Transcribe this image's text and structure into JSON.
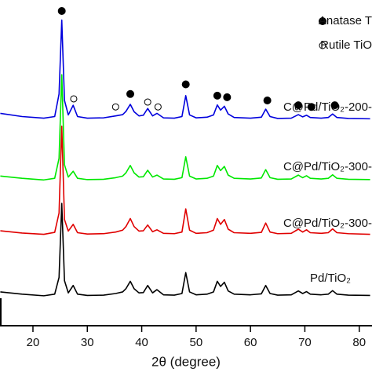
{
  "chart_data": {
    "type": "line",
    "xlabel": "2θ (degree)",
    "xlim": [
      14,
      82
    ],
    "xticks": [
      20,
      30,
      40,
      50,
      60,
      70,
      80
    ],
    "ylim": [
      0,
      100
    ],
    "x": [
      14,
      18,
      22,
      24,
      24.8,
      25.3,
      25.8,
      26.5,
      27.4,
      28.2,
      30,
      33,
      35.2,
      36.5,
      37.1,
      37.9,
      38.6,
      39.5,
      40.3,
      41.1,
      42,
      42.8,
      44,
      46,
      47.4,
      48.1,
      48.8,
      50,
      52,
      53.2,
      53.9,
      54.5,
      55.2,
      55.9,
      57,
      60,
      62,
      62.8,
      63.6,
      65,
      67.5,
      68.8,
      69.6,
      70.3,
      71,
      73,
      74.3,
      75.1,
      75.9,
      78,
      82
    ],
    "series": [
      {
        "name": "Pd/TiO₂",
        "color": "#000000",
        "values": [
          10.5,
          9.8,
          9.3,
          9.8,
          15,
          38,
          14,
          10.2,
          12.5,
          9.8,
          9.4,
          9.5,
          10,
          10.5,
          11.5,
          13.8,
          11.5,
          10.2,
          10.3,
          12.5,
          10.2,
          11.2,
          9.6,
          9.5,
          10,
          16.5,
          10.5,
          9.6,
          9.8,
          10.5,
          13.8,
          12.2,
          13.5,
          10.8,
          9.8,
          9.6,
          9.9,
          12.5,
          10,
          9.5,
          9.6,
          10.8,
          10,
          10.6,
          9.8,
          9.6,
          9.8,
          10.9,
          9.8,
          9.5,
          9.4
        ]
      },
      {
        "name": "C@Pd/TiO₂-300-",
        "color": "#e00000",
        "values": [
          29.5,
          28.8,
          28.4,
          29,
          35,
          62,
          33,
          29.4,
          31.5,
          28.9,
          28.5,
          28.6,
          29.1,
          29.7,
          30.8,
          33.3,
          30.8,
          29.4,
          29.5,
          31.3,
          29.2,
          29.8,
          28.7,
          28.6,
          29.1,
          36.3,
          29.7,
          28.7,
          28.9,
          29.7,
          33.3,
          31.5,
          33,
          30,
          28.9,
          28.7,
          29,
          31.9,
          29.1,
          28.6,
          28.7,
          30,
          29.1,
          29.8,
          28.9,
          28.7,
          28.9,
          30.1,
          28.9,
          28.6,
          28.4
        ]
      },
      {
        "name": "C@Pd/TiO₂-300-",
        "color": "#00e800",
        "values": [
          46.5,
          45.8,
          45.3,
          45.8,
          52,
          78,
          50,
          46.2,
          48,
          45.8,
          45.4,
          45.5,
          46,
          46.5,
          47.5,
          49.8,
          47.5,
          46.2,
          46.3,
          48.3,
          46.2,
          46.8,
          45.6,
          45.5,
          46,
          52.5,
          46.5,
          45.6,
          45.8,
          46.5,
          49.8,
          48.2,
          49.5,
          46.8,
          45.8,
          45.6,
          45.9,
          48.5,
          46,
          45.5,
          45.6,
          46.8,
          46,
          46.6,
          45.8,
          45.6,
          45.8,
          46.9,
          45.8,
          45.5,
          45.4
        ]
      },
      {
        "name": "C@Pd/TiO₂-200-",
        "color": "#0000dd",
        "values": [
          66,
          65,
          64.5,
          65,
          72,
          95,
          70,
          65.5,
          68.5,
          65,
          64.5,
          64.6,
          65.2,
          65.6,
          66.6,
          68.8,
          66.5,
          65.2,
          65.4,
          67.5,
          65.2,
          66,
          64.6,
          64.5,
          65,
          71.5,
          65.5,
          64.6,
          64.8,
          65.5,
          68.6,
          67,
          68.2,
          65.8,
          64.7,
          64.5,
          64.8,
          67.3,
          65,
          64.4,
          64.5,
          65.6,
          64.9,
          65.4,
          64.7,
          64.5,
          64.7,
          65.8,
          64.7,
          64.4,
          64.3
        ]
      }
    ],
    "markers": [
      {
        "name": "Anatase T",
        "filled": true,
        "x": [
          25.3,
          37.9,
          48.1,
          53.9,
          55.7,
          63.1,
          68.8,
          71.2,
          75.5
        ],
        "y": [
          97.8,
          72,
          75,
          71.5,
          71,
          70,
          68.5,
          68,
          68.5
        ]
      },
      {
        "name": "Rutile TiO",
        "filled": false,
        "x": [
          27.5,
          35.2,
          41.1,
          43
        ],
        "y": [
          70.5,
          68,
          69.5,
          68
        ]
      }
    ]
  }
}
